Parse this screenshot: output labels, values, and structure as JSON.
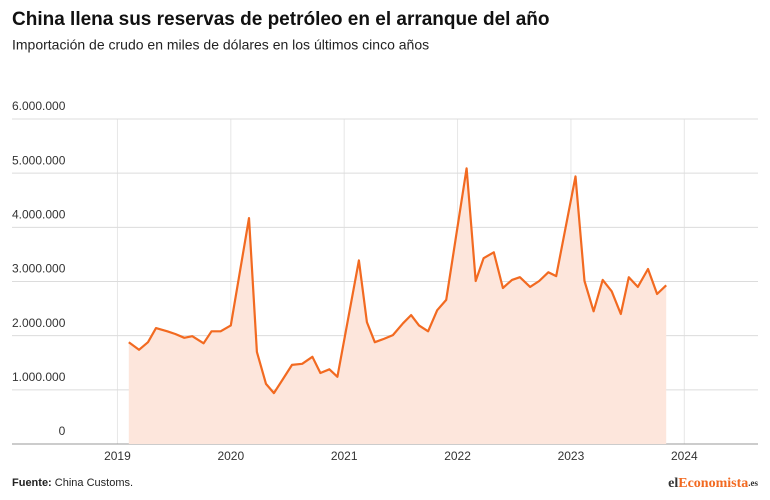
{
  "chart_data": {
    "type": "line",
    "title": "China llena sus reservas de petróleo en el arranque del año",
    "subtitle": "Importación de crudo en miles de dólares en los últimos cinco años",
    "source_label": "Fuente:",
    "source": "China Customs.",
    "logo": {
      "prefix": "el",
      "main": "Economista",
      "suffix": ".es"
    },
    "grid": true,
    "area": true,
    "xlim": [
      2018.07,
      2024.65
    ],
    "xticks": [
      2019,
      2020,
      2021,
      2022,
      2023,
      2024
    ],
    "ylim": [
      0,
      6000000
    ],
    "yticks": [
      0,
      {
        "value": 1000000,
        "label": "1.000.000"
      },
      {
        "value": 2000000,
        "label": "2.000.000"
      },
      {
        "value": 3000000,
        "label": "3.000.000"
      },
      {
        "value": 4000000,
        "label": "4.000.000"
      },
      {
        "value": 5000000,
        "label": "5.000.000"
      },
      {
        "value": 6000000,
        "label": "6.000.000"
      }
    ],
    "x": [
      2019.1,
      2019.19,
      2019.27,
      2019.34,
      2019.44,
      2019.51,
      2019.59,
      2019.66,
      2019.76,
      2019.83,
      2019.91,
      2020.0,
      2020.16,
      2020.23,
      2020.31,
      2020.38,
      2020.46,
      2020.54,
      2020.63,
      2020.72,
      2020.79,
      2020.87,
      2020.94,
      2021.13,
      2021.2,
      2021.27,
      2021.35,
      2021.43,
      2021.52,
      2021.59,
      2021.66,
      2021.74,
      2021.82,
      2021.9,
      2022.08,
      2022.16,
      2022.23,
      2022.32,
      2022.4,
      2022.48,
      2022.55,
      2022.64,
      2022.72,
      2022.8,
      2022.87,
      2023.04,
      2023.12,
      2023.2,
      2023.28,
      2023.36,
      2023.44,
      2023.51,
      2023.59,
      2023.68,
      2023.76,
      2023.84
    ],
    "series": [
      {
        "color": "#f26a21",
        "fill": "#fde6dc",
        "values": [
          1880000,
          1740000,
          1880000,
          2140000,
          2080000,
          2030000,
          1960000,
          1990000,
          1860000,
          2080000,
          2080000,
          2190000,
          4170000,
          1700000,
          1110000,
          940000,
          1200000,
          1460000,
          1480000,
          1610000,
          1310000,
          1380000,
          1240000,
          3390000,
          2250000,
          1880000,
          1940000,
          2010000,
          2230000,
          2380000,
          2190000,
          2080000,
          2470000,
          2660000,
          5090000,
          3010000,
          3430000,
          3540000,
          2880000,
          3030000,
          3080000,
          2900000,
          3010000,
          3170000,
          3100000,
          4940000,
          3010000,
          2450000,
          3030000,
          2820000,
          2400000,
          3080000,
          2900000,
          3230000,
          2770000,
          2930000
        ]
      }
    ]
  }
}
